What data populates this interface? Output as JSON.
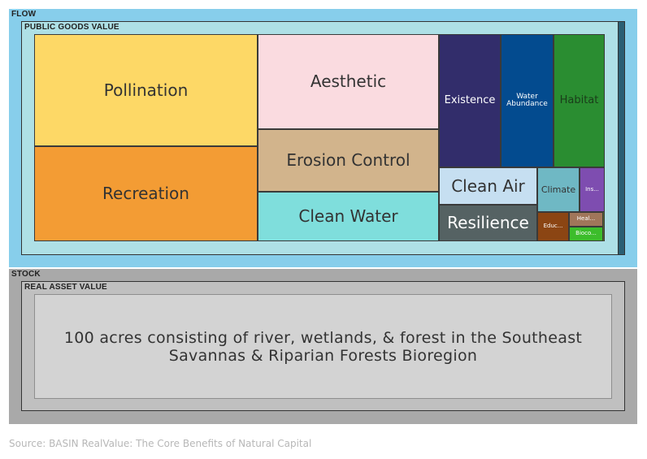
{
  "flow_label": "FLOW",
  "public_goods_label": "PUBLIC GOODS VALUE",
  "stock_label": "STOCK",
  "real_asset_label": "REAL ASSET VALUE",
  "stock_description_line1": "100 acres consisting of river, wetlands, & forest in the Southeast",
  "stock_description_line2": "Savannas & Riparian Forests Bioregion",
  "source": "Source: BASIN RealValue: The Core Benefits of Natural Capital",
  "colors": {
    "flow_bg": "#87ceeb",
    "public_goods_bg": "#aee0e6",
    "stock_bg": "#a9a9a9",
    "real_asset_bg": "#c0c0c0",
    "note_box_bg": "#d3d3d3"
  },
  "tiles": [
    {
      "key": "pollination",
      "label": "Pollination",
      "color": "#fdd866",
      "text_color": "#333333",
      "size": 20
    },
    {
      "key": "recreation",
      "label": "Recreation",
      "color": "#f39c34",
      "text_color": "#333333",
      "size": 20
    },
    {
      "key": "aesthetic",
      "label": "Aesthetic",
      "color": "#fadbe0",
      "text_color": "#333333",
      "size": 20
    },
    {
      "key": "erosion-control",
      "label": "Erosion Control",
      "color": "#d2b48c",
      "text_color": "#333333",
      "size": 20
    },
    {
      "key": "clean-water",
      "label": "Clean Water",
      "color": "#7fdedc",
      "text_color": "#333333",
      "size": 20
    },
    {
      "key": "existence",
      "label": "Existence",
      "color": "#322d6b",
      "text_color": "#ffffff",
      "size": 13
    },
    {
      "key": "water-abundance",
      "label": "Water Abundance",
      "color": "#034b8f",
      "text_color": "#ffffff",
      "size": 9
    },
    {
      "key": "habitat",
      "label": "Habitat",
      "color": "#2a8d31",
      "text_color": "#1a3d1a",
      "size": 13
    },
    {
      "key": "clean-air",
      "label": "Clean Air",
      "color": "#c6dff1",
      "text_color": "#333333",
      "size": 20
    },
    {
      "key": "resilience",
      "label": "Resilience",
      "color": "#556263",
      "text_color": "#ffffff",
      "size": 20
    },
    {
      "key": "climate",
      "label": "Climate",
      "color": "#6fb8c4",
      "text_color": "#333333",
      "size": 11
    },
    {
      "key": "ins",
      "label": "Ins...",
      "color": "#7e4db0",
      "text_color": "#ffffff",
      "size": 7
    },
    {
      "key": "educ",
      "label": "Educ...",
      "color": "#8b4513",
      "text_color": "#ffffff",
      "size": 7
    },
    {
      "key": "heal",
      "label": "Heal...",
      "color": "#a0765a",
      "text_color": "#ffffff",
      "size": 7
    },
    {
      "key": "bioco",
      "label": "Bioco...",
      "color": "#3cbd2b",
      "text_color": "#ffffff",
      "size": 7
    }
  ]
}
